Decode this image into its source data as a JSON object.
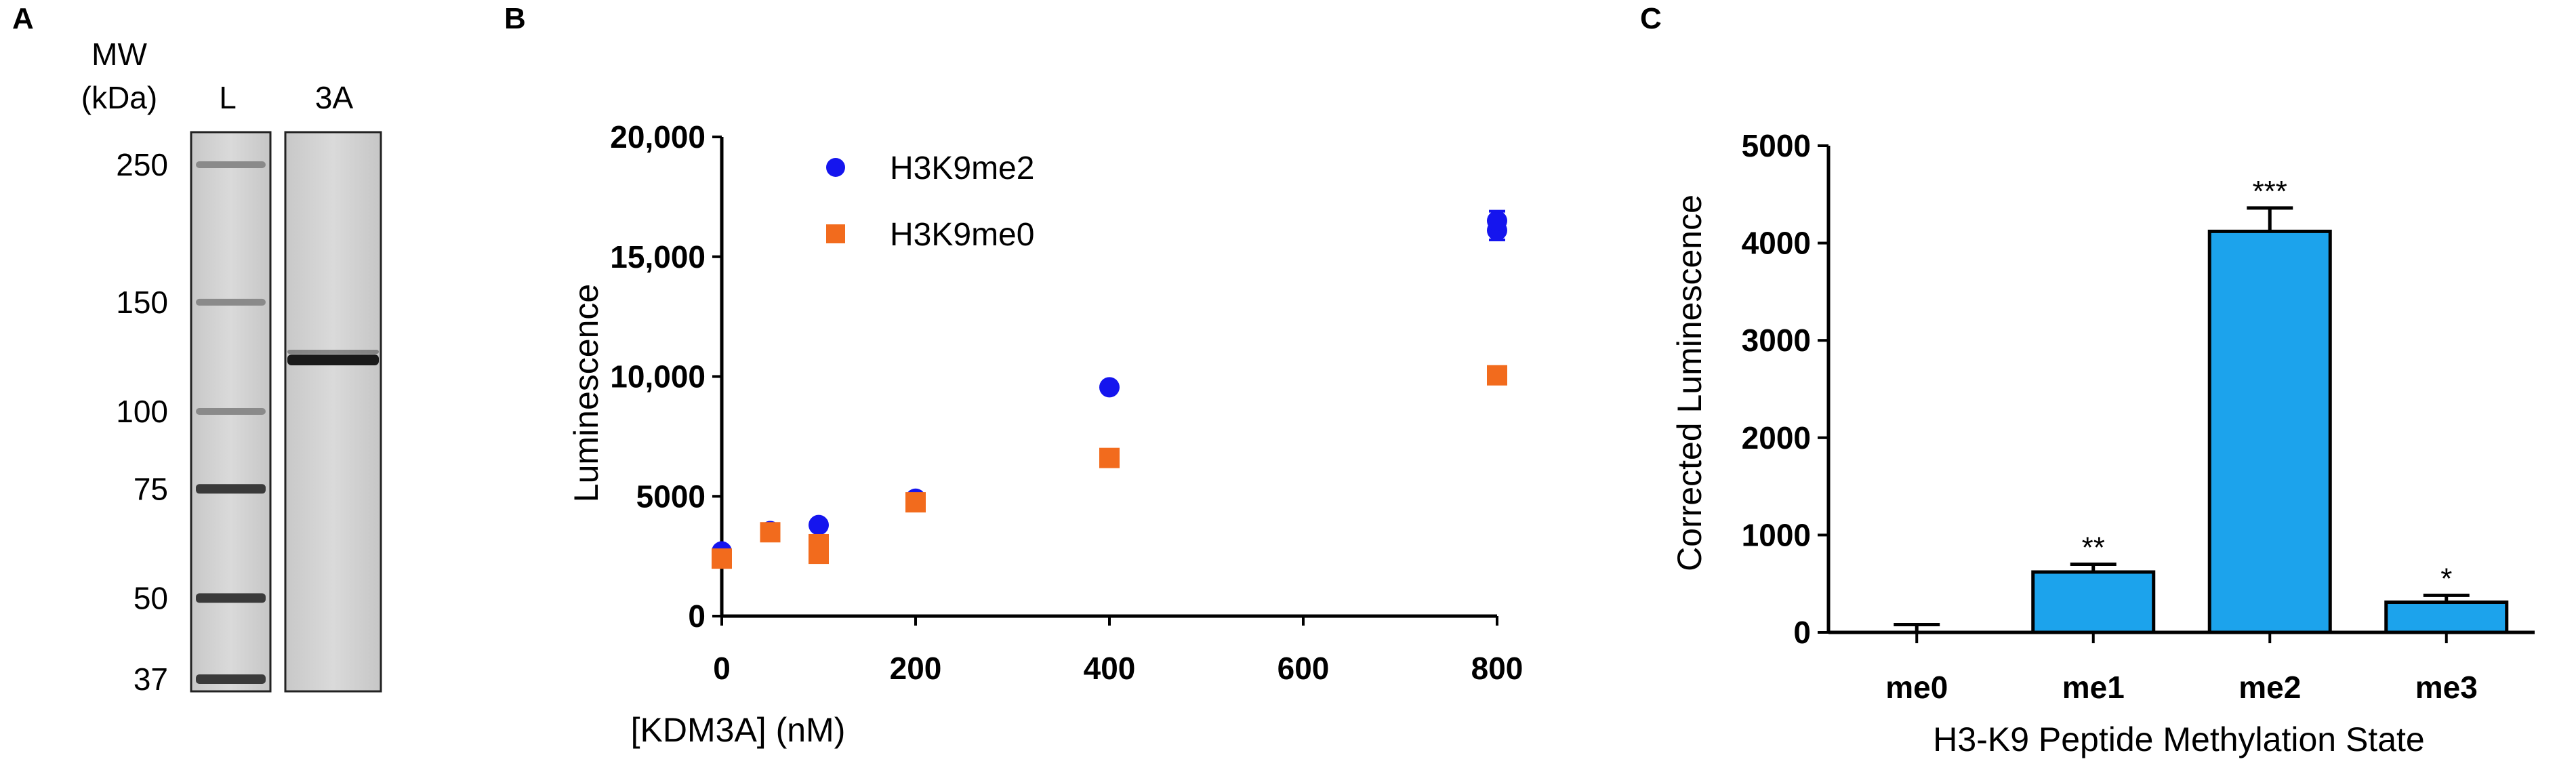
{
  "panels": {
    "a": {
      "letter": "A"
    },
    "b": {
      "letter": "B"
    },
    "c": {
      "letter": "C"
    }
  },
  "gel": {
    "header_mw": "MW",
    "header_kda": "(kDa)",
    "lane_labels": [
      "L",
      "3A"
    ],
    "mw_markers": [
      "250",
      "150",
      "100",
      "75",
      "50",
      "37"
    ],
    "mw_values": [
      250,
      150,
      100,
      75,
      50,
      37
    ],
    "band_color": "#1a1a1a",
    "background_color": "#d2d2d2"
  },
  "colors": {
    "me2": "#1515ee",
    "me0": "#f26b1d",
    "bar": "#1ca3ec",
    "axis": "#000000"
  },
  "chart_data": [
    {
      "type": "scatter",
      "panel": "B",
      "title": "",
      "xlabel": "[KDM3A] (nM)",
      "ylabel": "Luminescence",
      "xlim": [
        0,
        800
      ],
      "ylim": [
        0,
        20000
      ],
      "xticks": [
        0,
        200,
        400,
        600,
        800
      ],
      "xtick_labels": [
        "0",
        "200",
        "400",
        "600",
        "800"
      ],
      "yticks": [
        0,
        5000,
        10000,
        15000,
        20000
      ],
      "ytick_labels": [
        "0",
        "5000",
        "10,000",
        "15,000",
        "20,000"
      ],
      "legend_position": "top-left",
      "series": [
        {
          "name": "H3K9me2",
          "marker": "circle",
          "x": [
            0,
            50,
            100,
            200,
            400,
            800,
            800
          ],
          "y": [
            2700,
            3550,
            3800,
            4900,
            9550,
            16100,
            16500
          ]
        },
        {
          "name": "H3K9me0",
          "marker": "square",
          "x": [
            0,
            50,
            100,
            100,
            200,
            400,
            800
          ],
          "y": [
            2400,
            3500,
            3000,
            2600,
            4750,
            6600,
            10050
          ]
        }
      ]
    },
    {
      "type": "bar",
      "panel": "C",
      "title": "",
      "xlabel": "H3-K9 Peptide Methylation State",
      "ylabel": "Corrected Luminescence",
      "categories": [
        "me0",
        "me1",
        "me2",
        "me3"
      ],
      "values": [
        0,
        620,
        4120,
        310
      ],
      "errors": [
        80,
        80,
        240,
        70
      ],
      "significance": [
        "",
        "**",
        "***",
        "*"
      ],
      "ylim": [
        0,
        5000
      ],
      "yticks": [
        0,
        1000,
        2000,
        3000,
        4000,
        5000
      ],
      "ytick_labels": [
        "0",
        "1000",
        "2000",
        "3000",
        "4000",
        "5000"
      ]
    }
  ]
}
